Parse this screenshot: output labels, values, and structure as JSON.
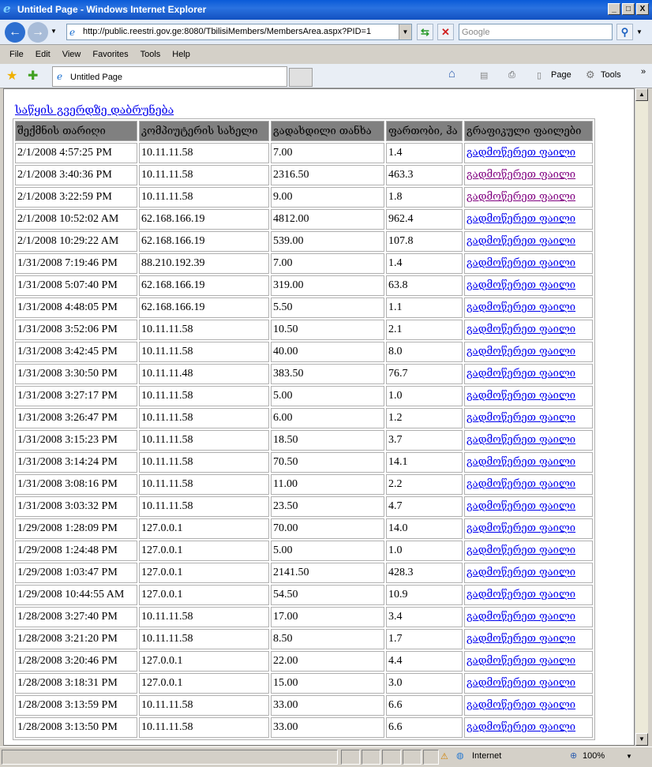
{
  "window": {
    "title": "Untitled Page - Windows Internet Explorer",
    "min": "_",
    "max": "□",
    "close": "X"
  },
  "nav": {
    "url": "http://public.reestri.gov.ge:8080/TbilisiMembers/MembersArea.aspx?PID=1",
    "search_placeholder": "Google"
  },
  "menu": [
    "File",
    "Edit",
    "View",
    "Favorites",
    "Tools",
    "Help"
  ],
  "tab": {
    "label": "Untitled Page"
  },
  "commandbar": {
    "page": "Page",
    "tools": "Tools"
  },
  "page": {
    "back_link": "საწყის გვერდზე დაბრუნება",
    "headers": [
      "შექმნის თარიღი",
      "კომპიუტერის სახელი",
      "გადახდილი თანხა",
      "ფართობი, ჰა",
      "გრაფიკული ფაილები"
    ],
    "link_label": "გადმოწერეთ ფაილი",
    "rows": [
      {
        "date": "2/1/2008 4:57:25 PM",
        "computer": "10.11.11.58",
        "paid": "7.00",
        "area": "1.4",
        "visited": false
      },
      {
        "date": "2/1/2008 3:40:36 PM",
        "computer": "10.11.11.58",
        "paid": "2316.50",
        "area": "463.3",
        "visited": true
      },
      {
        "date": "2/1/2008 3:22:59 PM",
        "computer": "10.11.11.58",
        "paid": "9.00",
        "area": "1.8",
        "visited": true
      },
      {
        "date": "2/1/2008 10:52:02 AM",
        "computer": "62.168.166.19",
        "paid": "4812.00",
        "area": "962.4",
        "visited": false
      },
      {
        "date": "2/1/2008 10:29:22 AM",
        "computer": "62.168.166.19",
        "paid": "539.00",
        "area": "107.8",
        "visited": false
      },
      {
        "date": "1/31/2008 7:19:46 PM",
        "computer": "88.210.192.39",
        "paid": "7.00",
        "area": "1.4",
        "visited": false
      },
      {
        "date": "1/31/2008 5:07:40 PM",
        "computer": "62.168.166.19",
        "paid": "319.00",
        "area": "63.8",
        "visited": false
      },
      {
        "date": "1/31/2008 4:48:05 PM",
        "computer": "62.168.166.19",
        "paid": "5.50",
        "area": "1.1",
        "visited": false
      },
      {
        "date": "1/31/2008 3:52:06 PM",
        "computer": "10.11.11.58",
        "paid": "10.50",
        "area": "2.1",
        "visited": false
      },
      {
        "date": "1/31/2008 3:42:45 PM",
        "computer": "10.11.11.58",
        "paid": "40.00",
        "area": "8.0",
        "visited": false
      },
      {
        "date": "1/31/2008 3:30:50 PM",
        "computer": "10.11.11.48",
        "paid": "383.50",
        "area": "76.7",
        "visited": false
      },
      {
        "date": "1/31/2008 3:27:17 PM",
        "computer": "10.11.11.58",
        "paid": "5.00",
        "area": "1.0",
        "visited": false
      },
      {
        "date": "1/31/2008 3:26:47 PM",
        "computer": "10.11.11.58",
        "paid": "6.00",
        "area": "1.2",
        "visited": false
      },
      {
        "date": "1/31/2008 3:15:23 PM",
        "computer": "10.11.11.58",
        "paid": "18.50",
        "area": "3.7",
        "visited": false
      },
      {
        "date": "1/31/2008 3:14:24 PM",
        "computer": "10.11.11.58",
        "paid": "70.50",
        "area": "14.1",
        "visited": false
      },
      {
        "date": "1/31/2008 3:08:16 PM",
        "computer": "10.11.11.58",
        "paid": "11.00",
        "area": "2.2",
        "visited": false
      },
      {
        "date": "1/31/2008 3:03:32 PM",
        "computer": "10.11.11.58",
        "paid": "23.50",
        "area": "4.7",
        "visited": false
      },
      {
        "date": "1/29/2008 1:28:09 PM",
        "computer": "127.0.0.1",
        "paid": "70.00",
        "area": "14.0",
        "visited": false
      },
      {
        "date": "1/29/2008 1:24:48 PM",
        "computer": "127.0.0.1",
        "paid": "5.00",
        "area": "1.0",
        "visited": false
      },
      {
        "date": "1/29/2008 1:03:47 PM",
        "computer": "127.0.0.1",
        "paid": "2141.50",
        "area": "428.3",
        "visited": false
      },
      {
        "date": "1/29/2008 10:44:55 AM",
        "computer": "127.0.0.1",
        "paid": "54.50",
        "area": "10.9",
        "visited": false
      },
      {
        "date": "1/28/2008 3:27:40 PM",
        "computer": "10.11.11.58",
        "paid": "17.00",
        "area": "3.4",
        "visited": false
      },
      {
        "date": "1/28/2008 3:21:20 PM",
        "computer": "10.11.11.58",
        "paid": "8.50",
        "area": "1.7",
        "visited": false
      },
      {
        "date": "1/28/2008 3:20:46 PM",
        "computer": "127.0.0.1",
        "paid": "22.00",
        "area": "4.4",
        "visited": false
      },
      {
        "date": "1/28/2008 3:18:31 PM",
        "computer": "127.0.0.1",
        "paid": "15.00",
        "area": "3.0",
        "visited": false
      },
      {
        "date": "1/28/2008 3:13:59 PM",
        "computer": "10.11.11.58",
        "paid": "33.00",
        "area": "6.6",
        "visited": false
      },
      {
        "date": "1/28/2008 3:13:50 PM",
        "computer": "10.11.11.58",
        "paid": "33.00",
        "area": "6.6",
        "visited": false
      }
    ]
  },
  "status": {
    "zone": "Internet",
    "zoom": "100%"
  },
  "colors": {
    "link": "#0000ee",
    "visited": "#800080",
    "header_bg": "#808080"
  }
}
